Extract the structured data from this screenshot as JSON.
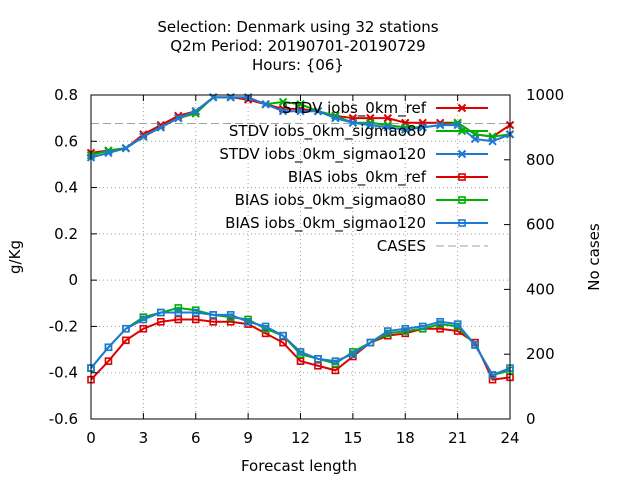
{
  "title_lines": [
    "Selection: Denmark using    32 stations",
    "Q2m   Period: 20190701-20190729",
    "Hours: {06}"
  ],
  "chart_data": {
    "type": "line",
    "xlabel": "Forecast length",
    "ylabel": "g/Kg",
    "y2label": "No cases",
    "xlim": [
      0,
      24
    ],
    "ylim": [
      -0.6,
      0.8
    ],
    "y2lim": [
      0,
      1000
    ],
    "xticks": [
      0,
      3,
      6,
      9,
      12,
      15,
      18,
      21,
      24
    ],
    "yticks": [
      -0.6,
      -0.4,
      -0.2,
      0,
      0.2,
      0.4,
      0.6,
      0.8
    ],
    "ytick_labels": [
      "-0.6",
      "-0.4",
      "-0.2",
      "0",
      "0.2",
      "0.4",
      "0.6",
      "0.8"
    ],
    "y2ticks": [
      0,
      200,
      400,
      600,
      800,
      1000
    ],
    "grid": true,
    "legend_position": "top-right",
    "x": [
      0,
      1,
      2,
      3,
      4,
      5,
      6,
      7,
      8,
      9,
      10,
      11,
      12,
      13,
      14,
      15,
      16,
      17,
      18,
      19,
      20,
      21,
      22,
      23,
      24
    ],
    "series": [
      {
        "name": "STDV iobs_0km_ref",
        "color": "#dd0000",
        "marker": "x",
        "axis": "y",
        "values": [
          0.55,
          0.56,
          0.57,
          0.63,
          0.67,
          0.71,
          0.73,
          0.79,
          0.79,
          0.78,
          0.76,
          0.74,
          0.74,
          0.73,
          0.71,
          0.7,
          0.7,
          0.7,
          0.68,
          0.68,
          0.68,
          0.68,
          0.63,
          0.62,
          0.67
        ]
      },
      {
        "name": "STDV iobs_0km_sigmao80",
        "color": "#00b000",
        "marker": "x",
        "axis": "y",
        "values": [
          0.54,
          0.56,
          0.57,
          0.62,
          0.66,
          0.7,
          0.72,
          0.79,
          0.79,
          0.79,
          0.76,
          0.77,
          0.76,
          0.73,
          0.71,
          0.68,
          0.68,
          0.67,
          0.66,
          0.66,
          0.67,
          0.68,
          0.63,
          0.62,
          0.63
        ]
      },
      {
        "name": "STDV iobs_0km_sigmao120",
        "color": "#1e78d8",
        "marker": "x",
        "axis": "y",
        "values": [
          0.53,
          0.55,
          0.57,
          0.62,
          0.66,
          0.7,
          0.73,
          0.79,
          0.79,
          0.79,
          0.76,
          0.73,
          0.73,
          0.73,
          0.7,
          0.68,
          0.67,
          0.66,
          0.65,
          0.66,
          0.67,
          0.67,
          0.61,
          0.6,
          0.63
        ]
      },
      {
        "name": "BIAS iobs_0km_ref",
        "color": "#dd0000",
        "marker": "square",
        "axis": "y",
        "values": [
          -0.43,
          -0.35,
          -0.26,
          -0.21,
          -0.18,
          -0.17,
          -0.17,
          -0.18,
          -0.18,
          -0.19,
          -0.23,
          -0.27,
          -0.35,
          -0.37,
          -0.39,
          -0.33,
          -0.27,
          -0.24,
          -0.23,
          -0.21,
          -0.21,
          -0.22,
          -0.27,
          -0.43,
          -0.42
        ]
      },
      {
        "name": "BIAS iobs_0km_sigmao80",
        "color": "#00b000",
        "marker": "square",
        "axis": "y",
        "values": [
          -0.38,
          -0.29,
          -0.21,
          -0.16,
          -0.14,
          -0.12,
          -0.13,
          -0.15,
          -0.16,
          -0.17,
          -0.21,
          -0.24,
          -0.32,
          -0.34,
          -0.36,
          -0.31,
          -0.27,
          -0.23,
          -0.22,
          -0.21,
          -0.19,
          -0.2,
          -0.28,
          -0.41,
          -0.39
        ]
      },
      {
        "name": "BIAS iobs_0km_sigmao120",
        "color": "#1e78d8",
        "marker": "square",
        "axis": "y",
        "values": [
          -0.38,
          -0.29,
          -0.21,
          -0.17,
          -0.14,
          -0.14,
          -0.14,
          -0.15,
          -0.15,
          -0.18,
          -0.2,
          -0.24,
          -0.31,
          -0.34,
          -0.35,
          -0.32,
          -0.27,
          -0.22,
          -0.21,
          -0.2,
          -0.18,
          -0.19,
          -0.28,
          -0.41,
          -0.38
        ]
      },
      {
        "name": "CASES",
        "color": "#a0a0a0",
        "marker": "none",
        "dashed": true,
        "axis": "y2",
        "values": [
          912,
          912,
          912,
          912,
          912,
          912,
          912,
          912,
          912,
          912,
          912,
          912,
          912,
          912,
          912,
          912,
          912,
          912,
          912,
          912,
          912,
          912,
          912,
          912,
          912
        ]
      }
    ]
  }
}
